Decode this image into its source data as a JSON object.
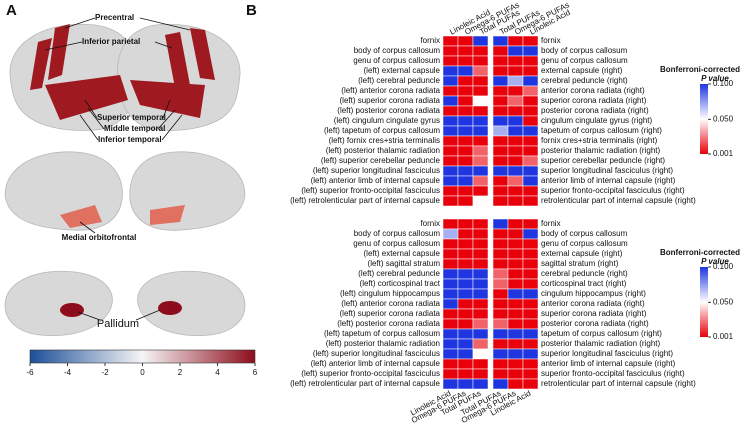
{
  "panel_a": {
    "letter": "A",
    "labels": {
      "precentral": "Precentral",
      "inferior_parietal": "Inferior parietal",
      "superior_temporal": "Superior temporal",
      "middle_temporal": "Middle temporal",
      "inferior_temporal": "Inferior temporal",
      "medial_orbitofrontal": "Medial orbitofrontal",
      "pallidum": "Pallidum"
    },
    "colorbar": {
      "xlim": [
        -6,
        6
      ],
      "xticks": [
        -6,
        -4,
        -2,
        0,
        2,
        4,
        6
      ],
      "colors": [
        "#1d4f9a",
        "#f5f5f5",
        "#8e0d1c"
      ]
    }
  },
  "chart_data": {
    "type": "heatmap",
    "letter": "B",
    "colors": [
      "#e8000b",
      "#ffffff",
      "#1f35e0"
    ],
    "heatmaps": [
      {
        "columns": [
          "Linoleic Acid",
          "Omega-6 PUFAs",
          "Total PUFAs",
          "Total PUFAs",
          "Omega-6 PUFAs",
          "Linoleic Acid"
        ],
        "rows_left": [
          "fornix",
          "body of corpus callosum",
          "genu of corpus callosum",
          "(left) external capsule",
          "(left) cerebral peduncle",
          "(left) anterior corona radiata",
          "(left) superior corona radiata",
          "(left) posterior corona radiata",
          "(left) cingulum cingulate gyrus",
          "(left) tapetum of corpus callosum",
          "(left) fornix cres+stria terminalis",
          "(left) posterior thalamic radiation",
          "(left) superior cerebellar peduncle",
          "(left) superior longitudinal fasciculus",
          "(left) anterior limb of internal capsule",
          "(left) superior fronto-occipital fasciculus",
          "(left) retrolenticular part of internal capsule"
        ],
        "rows_right": [
          "fornix",
          "body of corpus callosum",
          "genu of corpus callosum",
          "external capsule (right)",
          "cerebral peduncle (right)",
          "anterior corona radiata (right)",
          "superior corona radiata (right)",
          "posterior corona radiata (right)",
          "cingulum cingulate gyrus (right)",
          "tapetum of corpus callosum (right)",
          "fornix cres+stria terminalis (right)",
          "posterior thalamic radiation (right)",
          "superior cerebellar peduncle (right)",
          "superior longitudinal fasciculus (right)",
          "anterior limb of internal capsule (right)",
          "superior fronto-occipital fasciculus (right)",
          "retrolenticular part of internal capsule (right)"
        ],
        "values": [
          [
            0.001,
            0.001,
            0.1,
            0.1,
            0.001,
            0.001
          ],
          [
            0.001,
            0.001,
            0.001,
            0.001,
            0.1,
            0.1
          ],
          [
            0.001,
            0.001,
            0.001,
            0.001,
            0.001,
            0.001
          ],
          [
            0.1,
            0.1,
            0.02,
            0.001,
            0.001,
            0.001
          ],
          [
            0.1,
            0.001,
            0.001,
            0.1,
            0.07,
            0.1
          ],
          [
            0.001,
            0.001,
            0.001,
            0.001,
            0.001,
            0.02
          ],
          [
            0.1,
            0.001,
            0.05,
            0.001,
            0.02,
            0.001
          ],
          [
            0.001,
            0.001,
            0.001,
            0.001,
            0.001,
            0.001
          ],
          [
            0.1,
            0.1,
            0.1,
            0.1,
            0.1,
            0.001
          ],
          [
            0.1,
            0.1,
            0.1,
            0.07,
            0.1,
            0.1
          ],
          [
            0.001,
            0.001,
            0.001,
            0.001,
            0.001,
            0.001
          ],
          [
            0.001,
            0.001,
            0.02,
            0.001,
            0.001,
            0.001
          ],
          [
            0.001,
            0.001,
            0.02,
            0.001,
            0.001,
            0.02
          ],
          [
            0.1,
            0.1,
            0.1,
            0.1,
            0.1,
            0.1
          ],
          [
            0.1,
            0.1,
            0.02,
            0.001,
            0.02,
            0.1
          ],
          [
            0.001,
            0.001,
            0.001,
            0.001,
            0.001,
            0.001
          ],
          [
            0.001,
            0.001,
            0.05,
            0.001,
            0.001,
            0.001
          ]
        ],
        "legend": {
          "title": "Bonferroni-corrected",
          "subtitle": "P value",
          "lim": [
            0.001,
            0.1
          ],
          "ticks": [
            {
              "value": 0.1,
              "label": "0.100"
            },
            {
              "value": 0.05,
              "label": "0.050"
            },
            {
              "value": 0.001,
              "label": "0.001"
            }
          ]
        }
      },
      {
        "columns": [
          "Linoleic Acid",
          "Omega-6 PUFAs",
          "Total PUFAs",
          "Total PUFAs",
          "Omega-6 PUFAs",
          "Linoleic Acid"
        ],
        "rows_left": [
          "fornix",
          "body of corpus callosum",
          "genu of corpus callosum",
          "(left) external capsule",
          "(left) sagittal stratum",
          "(left) cerebral peduncle",
          "(left) corticospinal tract",
          "(left) cingulum hippocampus",
          "(left) anterior corona radiata",
          "(left) superior corona radiata",
          "(left) posterior corona radiata",
          "(left) tapetum of corpus callosum",
          "(left) posterior thalamic radiation",
          "(left) superior longitudinal fasciculus",
          "(left) anterior limb of internal capsule",
          "(left) superior fronto-occipital fasciculus",
          "(left) retrolenticular part of internal capsule"
        ],
        "rows_right": [
          "fornix",
          "body of corpus callosum",
          "genu of corpus callosum",
          "external capsule (right)",
          "sagittal stratum (right)",
          "cerebral peduncle (right)",
          "corticospinal tract (right)",
          "cingulum hippocampus (right)",
          "anterior corona radiata (right)",
          "superior corona radiata (right)",
          "posterior corona radiata (right)",
          "tapetum of corpus callosum (right)",
          "posterior thalamic radiation (right)",
          "superior longitudinal fasciculus (right)",
          "anterior limb of internal capsule (right)",
          "superior fronto-occipital fasciculus (right)",
          "retrolenticular part of internal capsule (right)"
        ],
        "values": [
          [
            0.001,
            0.001,
            0.001,
            0.1,
            0.001,
            0.001
          ],
          [
            0.07,
            0.001,
            0.001,
            0.001,
            0.001,
            0.1
          ],
          [
            0.001,
            0.001,
            0.001,
            0.001,
            0.001,
            0.001
          ],
          [
            0.001,
            0.001,
            0.001,
            0.001,
            0.001,
            0.001
          ],
          [
            0.001,
            0.001,
            0.001,
            0.001,
            0.001,
            0.001
          ],
          [
            0.1,
            0.1,
            0.1,
            0.02,
            0.001,
            0.001
          ],
          [
            0.1,
            0.1,
            0.1,
            0.02,
            0.001,
            0.001
          ],
          [
            0.1,
            0.1,
            0.1,
            0.001,
            0.1,
            0.1
          ],
          [
            0.1,
            0.001,
            0.001,
            0.001,
            0.001,
            0.001
          ],
          [
            0.001,
            0.001,
            0.001,
            0.001,
            0.001,
            0.001
          ],
          [
            0.001,
            0.001,
            0.02,
            0.02,
            0.001,
            0.001
          ],
          [
            0.1,
            0.1,
            0.1,
            0.1,
            0.1,
            0.1
          ],
          [
            0.1,
            0.1,
            0.02,
            0.001,
            0.001,
            0.001
          ],
          [
            0.1,
            0.1,
            0.05,
            0.1,
            0.1,
            0.1
          ],
          [
            0.001,
            0.001,
            0.001,
            0.001,
            0.001,
            0.001
          ],
          [
            0.001,
            0.001,
            0.001,
            0.001,
            0.001,
            0.001
          ],
          [
            0.1,
            0.1,
            0.1,
            0.1,
            0.001,
            0.001
          ]
        ],
        "legend": {
          "title": "Bonferroni-corrected",
          "subtitle": "P value",
          "lim": [
            0.001,
            0.1
          ],
          "ticks": [
            {
              "value": 0.1,
              "label": "0.100"
            },
            {
              "value": 0.05,
              "label": "0.050"
            },
            {
              "value": 0.001,
              "label": "0.001"
            }
          ]
        }
      }
    ]
  }
}
